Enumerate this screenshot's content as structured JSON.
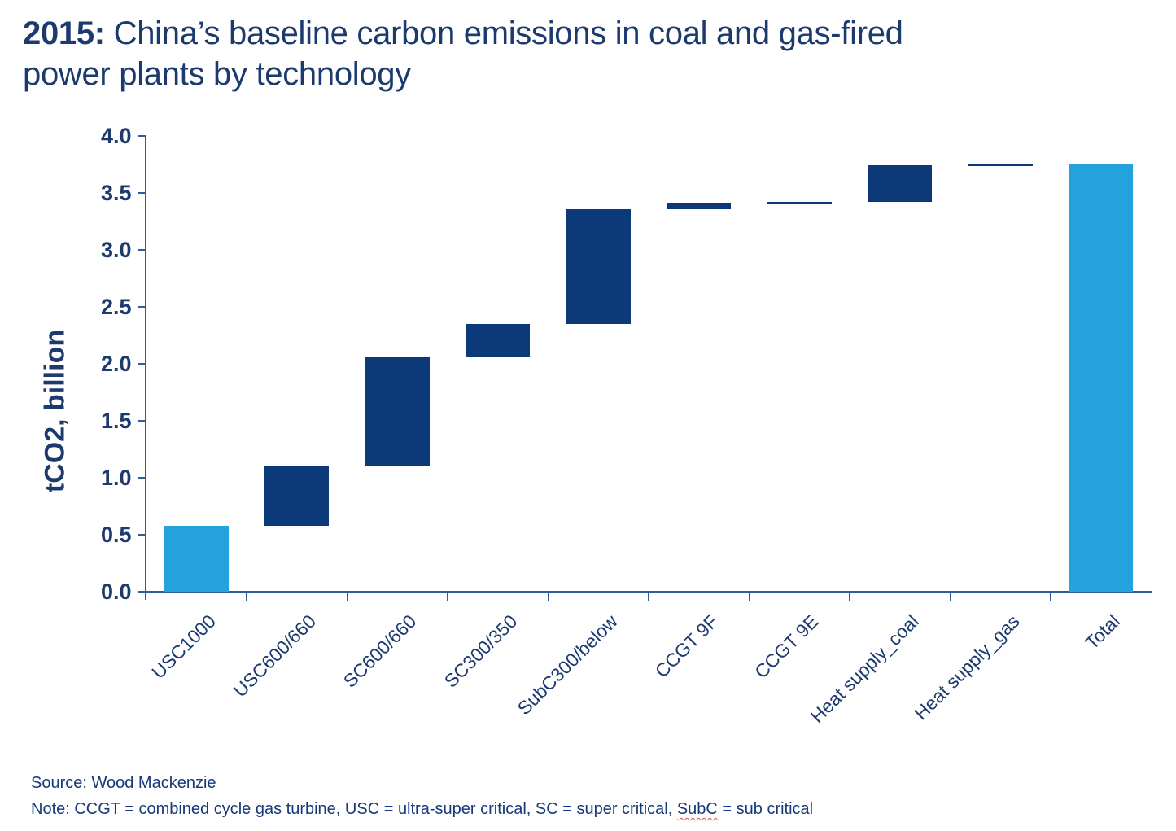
{
  "title": {
    "prefix": "2015:",
    "rest": " China’s baseline carbon emissions in coal and gas-fired",
    "line2": "power plants by technology"
  },
  "footer": {
    "source": "Source: Wood Mackenzie",
    "note_prefix": "Note: CCGT = combined cycle gas turbine, USC = ultra-super critical, SC = super critical, ",
    "note_misspelled": "SubC",
    "note_suffix": " = sub critical"
  },
  "chart_data": {
    "type": "bar",
    "subtype": "waterfall",
    "title": "2015: China’s baseline carbon emissions in coal and gas-fired power plants by technology",
    "xlabel": "",
    "ylabel": "tCO2, billion",
    "ylim": [
      0,
      4.0
    ],
    "ytick_step": 0.5,
    "ytick_labels": [
      "0.0",
      "0.5",
      "1.0",
      "1.5",
      "2.0",
      "2.5",
      "3.0",
      "3.5",
      "4.0"
    ],
    "grid": "off",
    "legend": "none",
    "categories": [
      "USC1000",
      "USC600/660",
      "SC600/660",
      "SC300/350",
      "SubC300/below",
      "CCGT 9F",
      "CCGT 9E",
      "Heat supply_coal",
      "Heat supply_gas",
      "Total"
    ],
    "bars": [
      {
        "category": "USC1000",
        "start": 0,
        "end": 0.58,
        "delta": 0.58,
        "type": "total"
      },
      {
        "category": "USC600/660",
        "start": 0.58,
        "end": 1.1,
        "delta": 0.52,
        "type": "delta"
      },
      {
        "category": "SC600/660",
        "start": 1.1,
        "end": 2.06,
        "delta": 0.96,
        "type": "delta"
      },
      {
        "category": "SC300/350",
        "start": 2.06,
        "end": 2.35,
        "delta": 0.29,
        "type": "delta"
      },
      {
        "category": "SubC300/below",
        "start": 2.35,
        "end": 3.36,
        "delta": 1.01,
        "type": "delta"
      },
      {
        "category": "CCGT 9F",
        "start": 3.36,
        "end": 3.41,
        "delta": 0.05,
        "type": "delta"
      },
      {
        "category": "CCGT 9E",
        "start": 3.41,
        "end": 3.42,
        "delta": 0.01,
        "type": "delta"
      },
      {
        "category": "Heat supply_coal",
        "start": 3.42,
        "end": 3.74,
        "delta": 0.32,
        "type": "delta"
      },
      {
        "category": "Heat supply_gas",
        "start": 3.74,
        "end": 3.76,
        "delta": 0.02,
        "type": "delta"
      },
      {
        "category": "Total",
        "start": 0,
        "end": 3.76,
        "delta": 3.76,
        "type": "total"
      }
    ],
    "colors": {
      "total_bar": "#23a2de",
      "delta_bar": "#0b3979",
      "axis": "#2e5c9e",
      "text": "#1c3a6e"
    }
  }
}
